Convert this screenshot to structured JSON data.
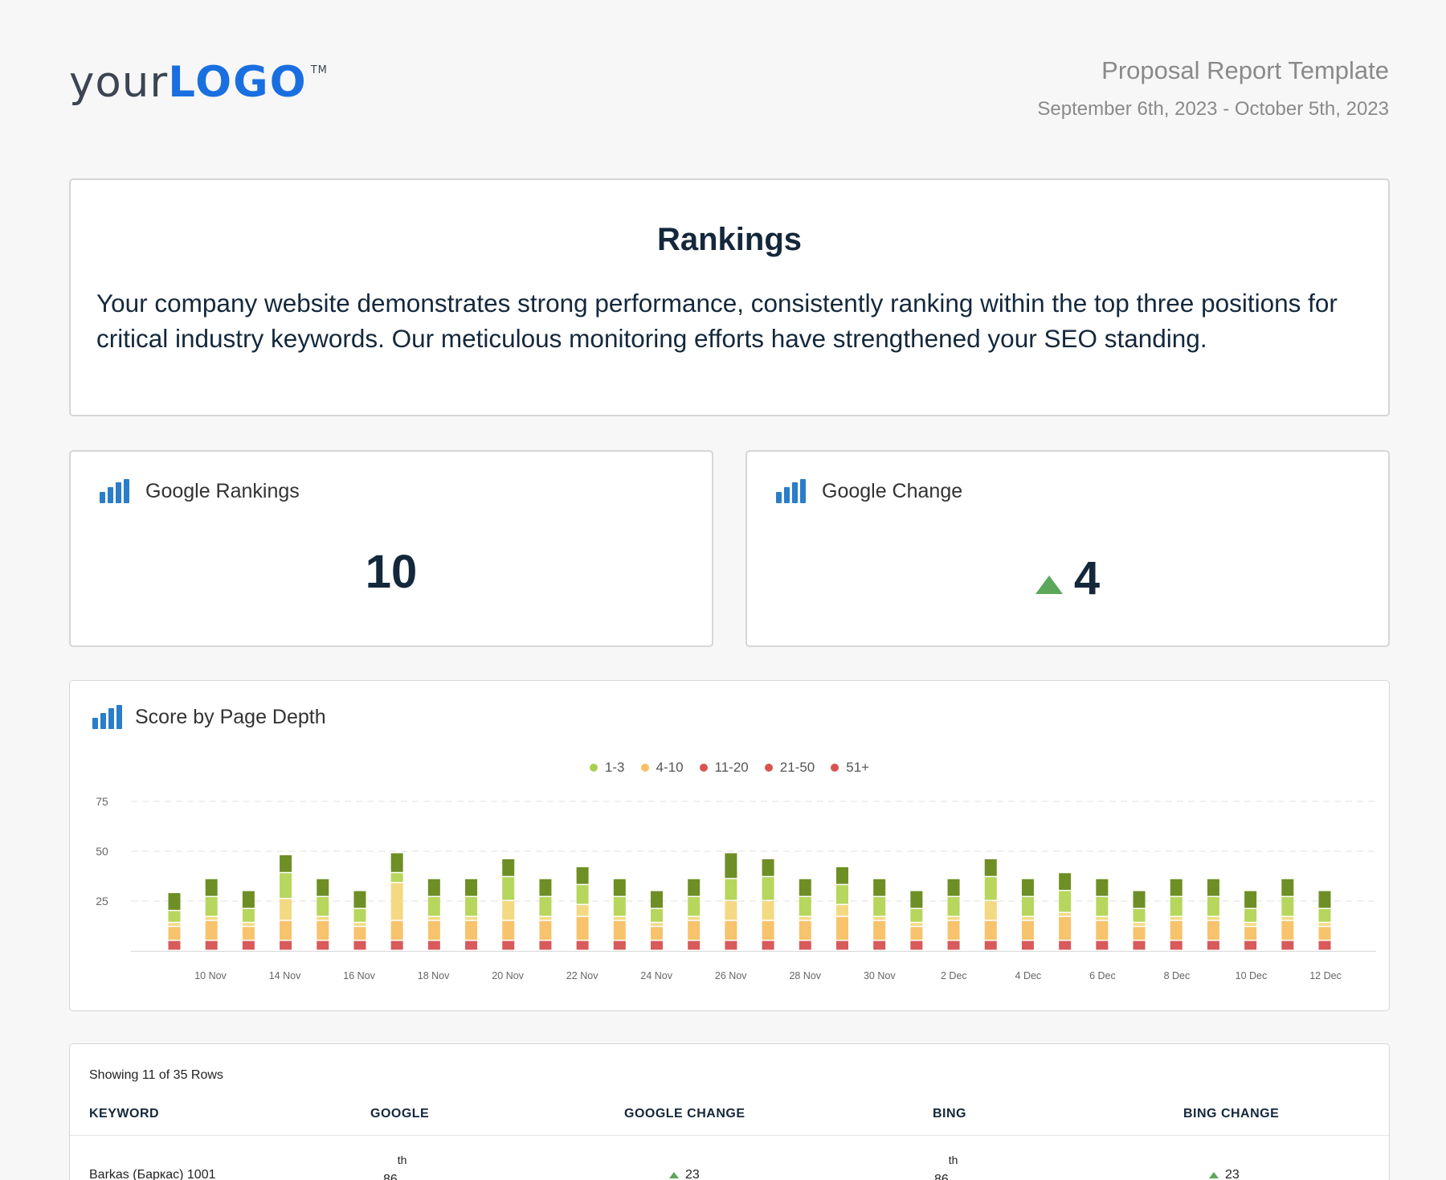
{
  "logo": {
    "part1": "your",
    "part2": "LOGO",
    "tm": "TM"
  },
  "header": {
    "title": "Proposal Report Template",
    "dates": "September 6th, 2023 - October 5th, 2023"
  },
  "intro": {
    "heading": "Rankings",
    "body": "Your company website demonstrates strong performance, consistently ranking within the top three positions for critical industry keywords. Our meticulous monitoring efforts have strengthened your SEO standing."
  },
  "kpis": {
    "google_rankings": {
      "label": "Google Rankings",
      "value": "10"
    },
    "google_change": {
      "label": "Google Change",
      "value": "4"
    }
  },
  "chart": {
    "title": "Score by Page Depth"
  },
  "chart_data": {
    "type": "bar",
    "stacked": true,
    "legend_position": "top-center",
    "grid": true,
    "ylim": [
      0,
      75
    ],
    "yticks": [
      "75",
      "50",
      "25"
    ],
    "xtick_labels": [
      "10 Nov",
      "14 Nov",
      "16 Nov",
      "18 Nov",
      "20 Nov",
      "22 Nov",
      "24 Nov",
      "26 Nov",
      "28 Nov",
      "30 Nov",
      "2 Dec",
      "4 Dec",
      "6 Dec",
      "8 Dec",
      "10 Dec",
      "12 Dec"
    ],
    "legend": [
      {
        "name": "1-3",
        "color": "#a9d04f"
      },
      {
        "name": "4-10",
        "color": "#f7bf63"
      },
      {
        "name": "11-20",
        "color": "#d9534f"
      },
      {
        "name": "21-50",
        "color": "#d9534f"
      },
      {
        "name": "51+",
        "color": "#d9534f"
      }
    ],
    "segment_colors": [
      "#d85a5a",
      "#f7c36c",
      "#f4d983",
      "#b7d65d",
      "#6e8f25"
    ],
    "stacks": [
      [
        5,
        7,
        2,
        6,
        9
      ],
      [
        5,
        10,
        2,
        10,
        9
      ],
      [
        5,
        7,
        2,
        7,
        9
      ],
      [
        5,
        10,
        11,
        13,
        9
      ],
      [
        5,
        10,
        2,
        10,
        9
      ],
      [
        5,
        7,
        2,
        7,
        9
      ],
      [
        5,
        10,
        19,
        5,
        10
      ],
      [
        5,
        10,
        2,
        10,
        9
      ],
      [
        5,
        10,
        2,
        10,
        9
      ],
      [
        5,
        10,
        10,
        12,
        9
      ],
      [
        5,
        10,
        2,
        10,
        9
      ],
      [
        5,
        12,
        6,
        10,
        9
      ],
      [
        5,
        10,
        2,
        10,
        9
      ],
      [
        5,
        7,
        2,
        7,
        9
      ],
      [
        5,
        10,
        2,
        10,
        9
      ],
      [
        5,
        10,
        10,
        11,
        13
      ],
      [
        5,
        10,
        10,
        12,
        9
      ],
      [
        5,
        10,
        2,
        10,
        9
      ],
      [
        5,
        12,
        6,
        10,
        9
      ],
      [
        5,
        10,
        2,
        10,
        9
      ],
      [
        5,
        7,
        2,
        7,
        9
      ],
      [
        5,
        10,
        2,
        10,
        9
      ],
      [
        5,
        10,
        10,
        12,
        9
      ],
      [
        5,
        10,
        2,
        10,
        9
      ],
      [
        5,
        12,
        2,
        11,
        9
      ],
      [
        5,
        10,
        2,
        10,
        9
      ],
      [
        5,
        7,
        2,
        7,
        9
      ],
      [
        5,
        10,
        2,
        10,
        9
      ],
      [
        5,
        10,
        2,
        10,
        9
      ],
      [
        5,
        7,
        2,
        7,
        9
      ],
      [
        5,
        10,
        2,
        10,
        9
      ],
      [
        5,
        7,
        2,
        7,
        9
      ]
    ]
  },
  "table": {
    "showing": "Showing 11 of 35 Rows",
    "headers": {
      "keyword": "KEYWORD",
      "google": "GOOGLE",
      "google_change": "GOOGLE CHANGE",
      "bing": "BING",
      "bing_change": "BING CHANGE"
    },
    "rows": [
      {
        "keyword": "Barkas (Баркас) 1001",
        "google": "86",
        "google_sup": "th",
        "google_change": "23",
        "bing": "86",
        "bing_sup": "th",
        "bing_change": "23"
      }
    ]
  }
}
